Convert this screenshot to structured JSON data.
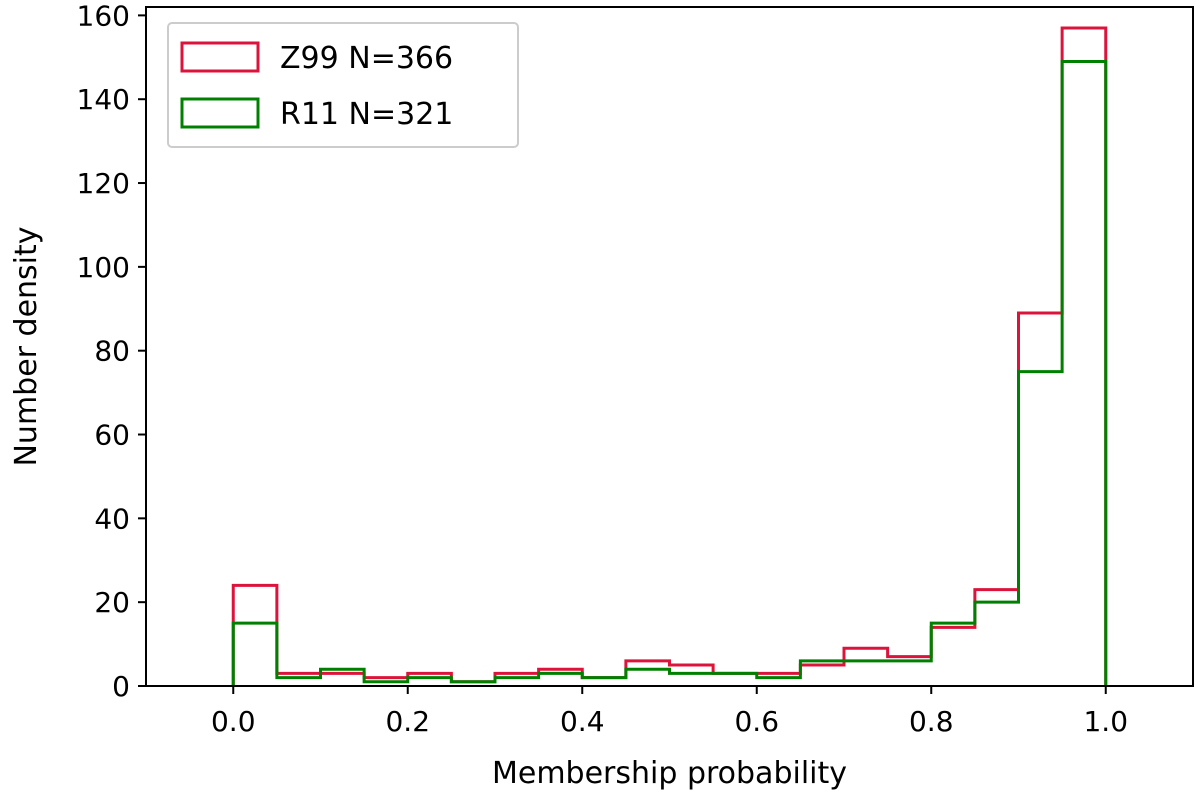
{
  "chart_data": {
    "type": "histogram",
    "xlabel": "Membership probability",
    "ylabel": "Number density",
    "xlim": [
      -0.1,
      1.1
    ],
    "ylim": [
      0,
      162
    ],
    "xticks": [
      0.0,
      0.2,
      0.4,
      0.6,
      0.8,
      1.0
    ],
    "xtick_labels": [
      "0.0",
      "0.2",
      "0.4",
      "0.6",
      "0.8",
      "1.0"
    ],
    "yticks": [
      0,
      20,
      40,
      60,
      80,
      100,
      120,
      140,
      160
    ],
    "ytick_labels": [
      "0",
      "20",
      "40",
      "60",
      "80",
      "100",
      "120",
      "140",
      "160"
    ],
    "bin_edges": [
      0.0,
      0.05,
      0.1,
      0.15,
      0.2,
      0.25,
      0.3,
      0.35,
      0.4,
      0.45,
      0.5,
      0.55,
      0.6,
      0.65,
      0.7,
      0.75,
      0.8,
      0.85,
      0.9,
      0.95,
      1.0
    ],
    "series": [
      {
        "name": "Z99 N=366",
        "color": "#dc143c",
        "values": [
          24,
          3,
          3,
          2,
          3,
          1,
          3,
          4,
          2,
          6,
          5,
          3,
          3,
          5,
          9,
          7,
          14,
          23,
          89,
          157
        ]
      },
      {
        "name": "R11 N=321",
        "color": "#008000",
        "values": [
          15,
          2,
          4,
          1,
          2,
          1,
          2,
          3,
          2,
          4,
          3,
          3,
          2,
          6,
          6,
          6,
          15,
          20,
          75,
          149
        ]
      }
    ],
    "legend_position": "upper-left",
    "grid": false
  }
}
